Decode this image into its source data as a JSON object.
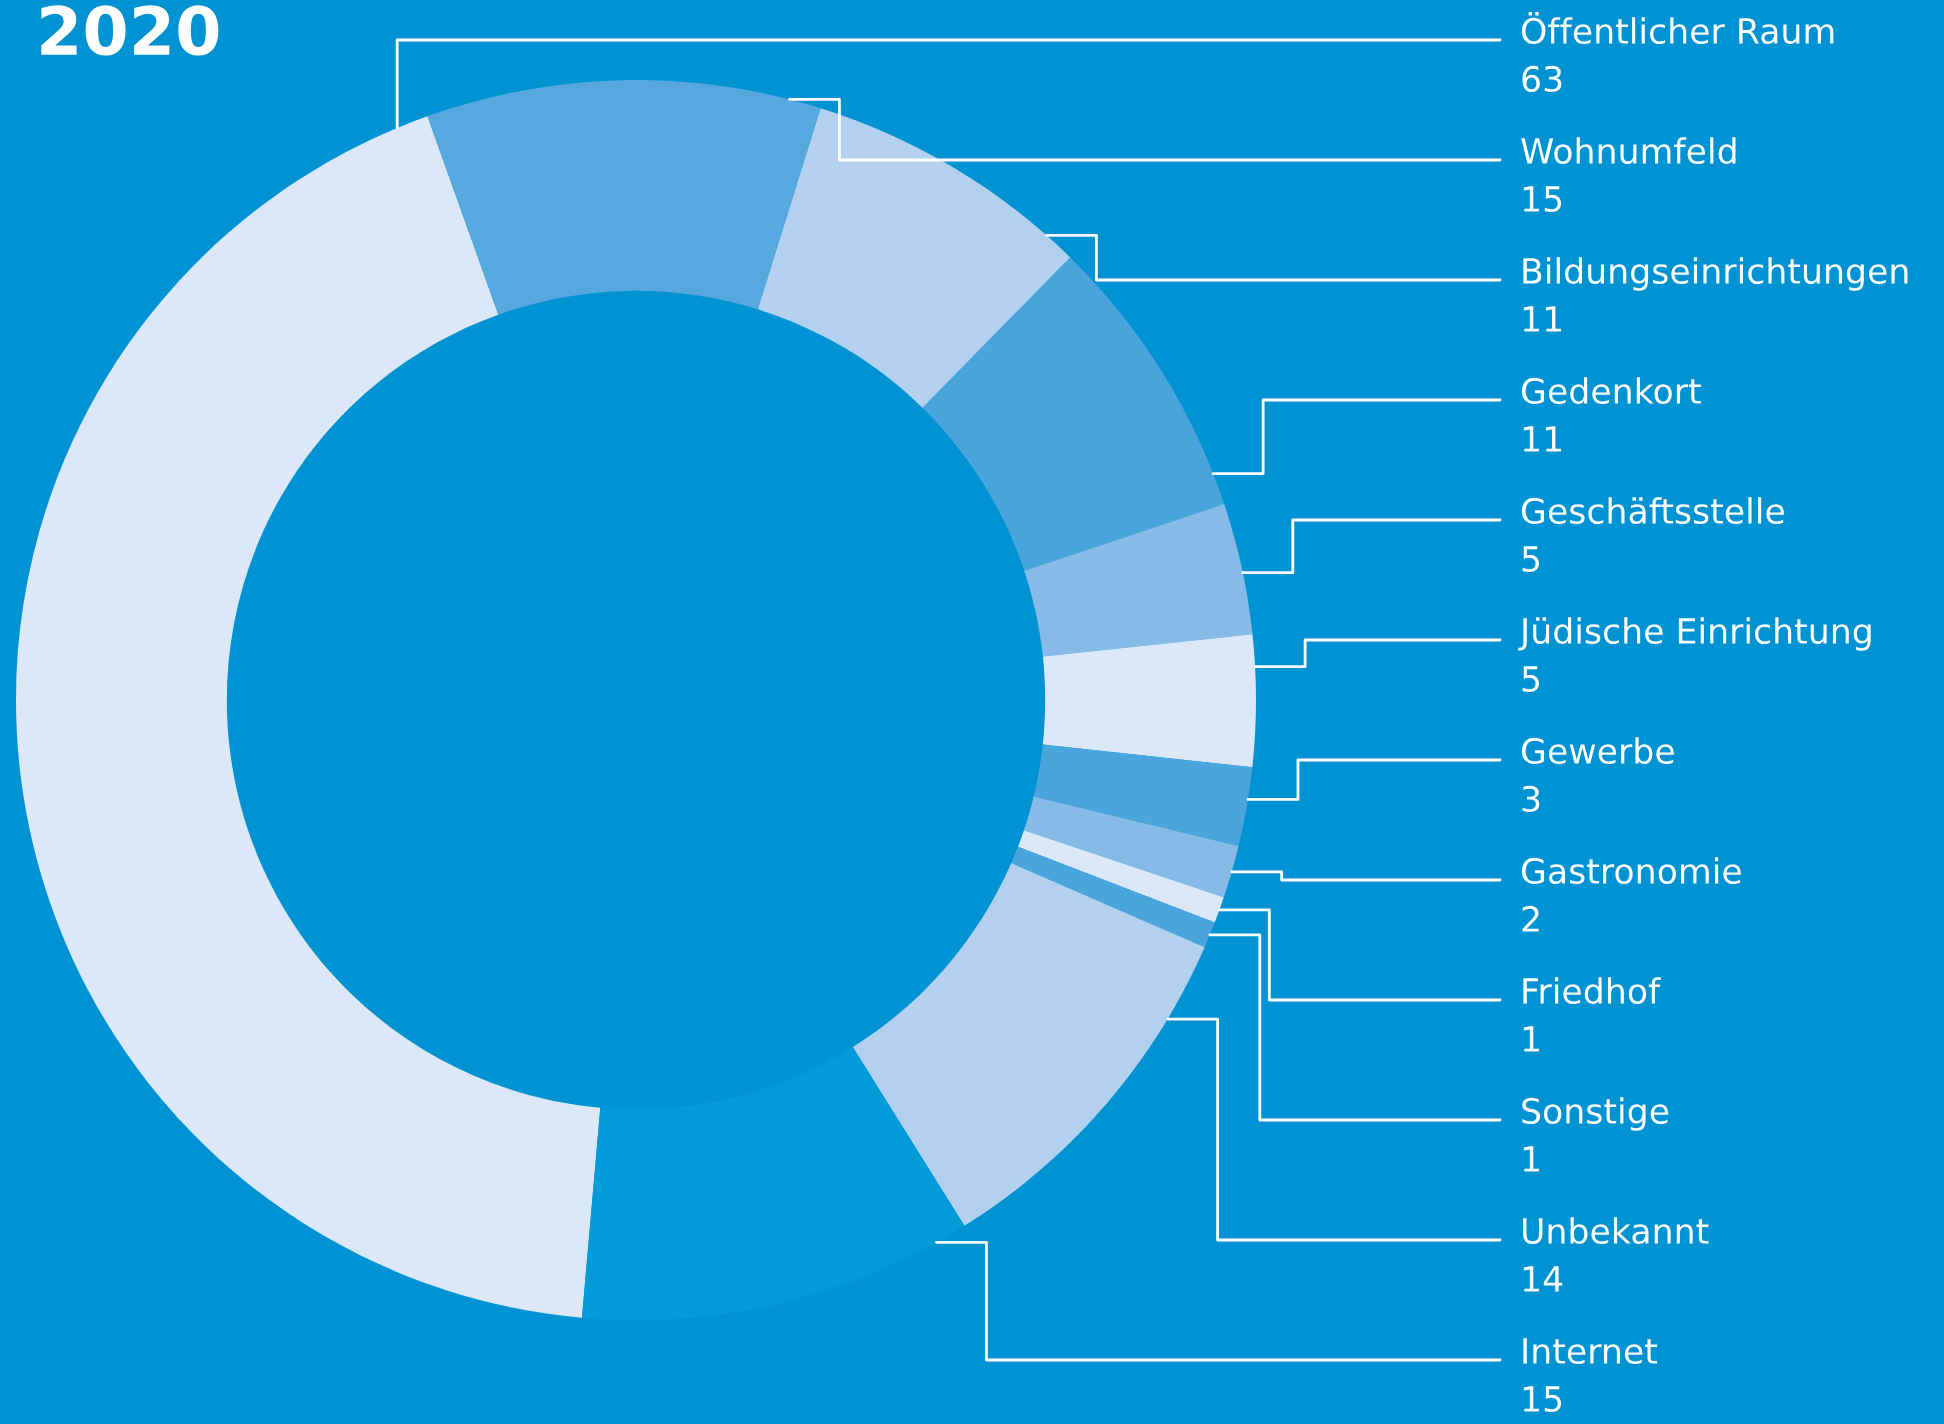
{
  "chart_data": {
    "type": "donut",
    "title": "2020",
    "categories": [
      "Öffentlicher Raum",
      "Wohnumfeld",
      "Bildungseinrichtungen",
      "Gedenkort",
      "Geschäftsstelle",
      "Jüdische Einrichtung",
      "Gewerbe",
      "Gastronomie",
      "Friedhof",
      "Sonstige",
      "Unbekannt",
      "Internet"
    ],
    "values": [
      63,
      15,
      11,
      11,
      5,
      5,
      3,
      2,
      1,
      1,
      14,
      15
    ],
    "colors": [
      "#dce8f7",
      "#56a8de",
      "#b3d1ee",
      "#4aa5dc",
      "#86bbe7",
      "#dce8f7",
      "#4aa5dc",
      "#86bbe7",
      "#dce8f7",
      "#4aa5dc",
      "#b3d1ee",
      "#009bd8"
    ],
    "data_labels": true
  }
}
